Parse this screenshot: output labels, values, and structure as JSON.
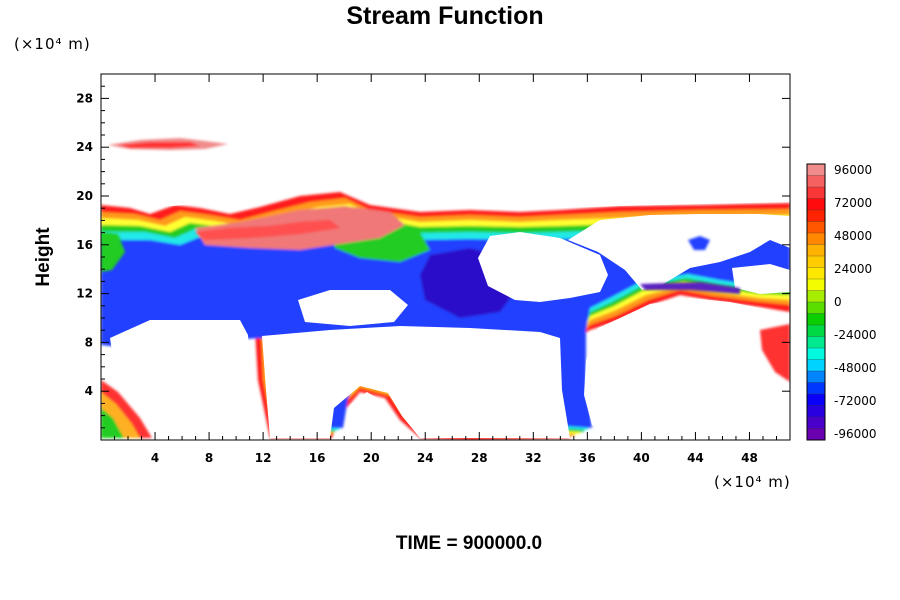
{
  "chart_data": {
    "type": "heatmap",
    "title": "Stream Function",
    "ylabel": "Height",
    "xlabel": "",
    "x_unit": "(×10⁴ m)",
    "y_unit": "(×10⁴ m)",
    "xlim": [
      0,
      51
    ],
    "ylim": [
      0,
      30
    ],
    "x_ticks": [
      4,
      8,
      12,
      16,
      20,
      24,
      28,
      32,
      36,
      40,
      44,
      48
    ],
    "y_ticks": [
      4,
      8,
      12,
      16,
      20,
      24,
      28
    ],
    "colorbar": {
      "min": -96000,
      "max": 96000,
      "levels": 24,
      "labels": [
        "96000",
        "72000",
        "48000",
        "24000",
        "0",
        "-24000",
        "-48000",
        "-72000",
        "-96000"
      ],
      "colors": [
        "#f08c8c",
        "#ff0000",
        "#ffa500",
        "#ffff00",
        "#00cc00",
        "#00ffff",
        "#0000ff",
        "#6a00b0"
      ]
    },
    "footer": "TIME = 900000.0"
  }
}
